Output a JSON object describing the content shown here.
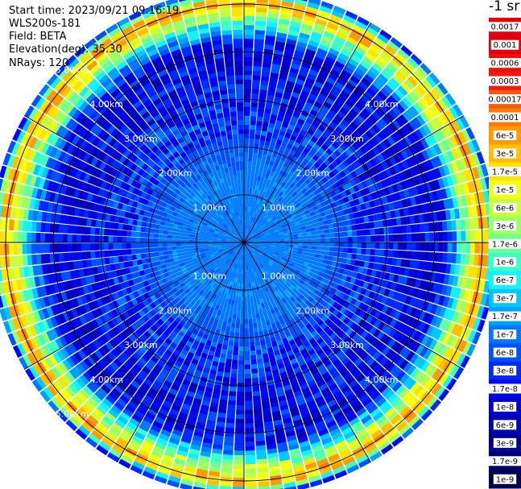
{
  "header": {
    "start_time": "Start time: 2023/09/21 09:16:19",
    "instrument": "WLS200s-181",
    "field": "Field: BETA",
    "elevation": "Elevation(deg): 35.30",
    "nrays": "NRays: 120"
  },
  "colorbar": {
    "unit_label": "-1 sr",
    "ticks": [
      "0.0017",
      "0.001",
      "0.0006",
      "0.0003",
      "0.00017",
      "0.0001",
      "6e-5",
      "3e-5",
      "1.7e-5",
      "1e-5",
      "6e-6",
      "3e-6",
      "1.7e-6",
      "1e-6",
      "6e-7",
      "3e-7",
      "1.7e-7",
      "1e-7",
      "6e-8",
      "3e-8",
      "1.7e-8",
      "1e-8",
      "6e-9",
      "3e-9",
      "1.7e-9",
      "1e-9"
    ],
    "colors": [
      "#e8000b",
      "#e20010",
      "#ef0e0e",
      "#f21b12",
      "#fc5a0a",
      "#ff7a05",
      "#ff9a00",
      "#ffbe00",
      "#ffe200",
      "#f2ff14",
      "#c8ff3c",
      "#9cff68",
      "#6bff9a",
      "#3cffc8",
      "#14f0ff",
      "#00c8ff",
      "#00a0ff",
      "#0078ff",
      "#0050ff",
      "#0028ff",
      "#0008f0",
      "#0000d2",
      "#0000b4",
      "#000096",
      "#00006e",
      "#000050"
    ]
  },
  "chart_data": {
    "type": "polar-ppi",
    "field": "BETA",
    "n_rays": 120,
    "elevation_deg": 35.3,
    "range_rings": [
      "1.00km",
      "2.00km",
      "3.00km",
      "4.00km",
      "5.00km"
    ],
    "spokes_deg": [
      0,
      30,
      60,
      90,
      120,
      150,
      180,
      210,
      240,
      270,
      300,
      330
    ],
    "value_profile_by_range_km": [
      {
        "range_km": 0.0,
        "log10_beta": -7.0
      },
      {
        "range_km": 1.5,
        "log10_beta": -7.0
      },
      {
        "range_km": 2.5,
        "log10_beta": -7.5
      },
      {
        "range_km": 3.5,
        "log10_beta": -7.8
      },
      {
        "range_km": 4.2,
        "log10_beta": -7.8
      },
      {
        "range_km": 4.7,
        "log10_beta": -5.5
      },
      {
        "range_km": 5.05,
        "log10_beta": -4.3
      },
      {
        "range_km": 5.3,
        "log10_beta": -7.6
      }
    ]
  }
}
